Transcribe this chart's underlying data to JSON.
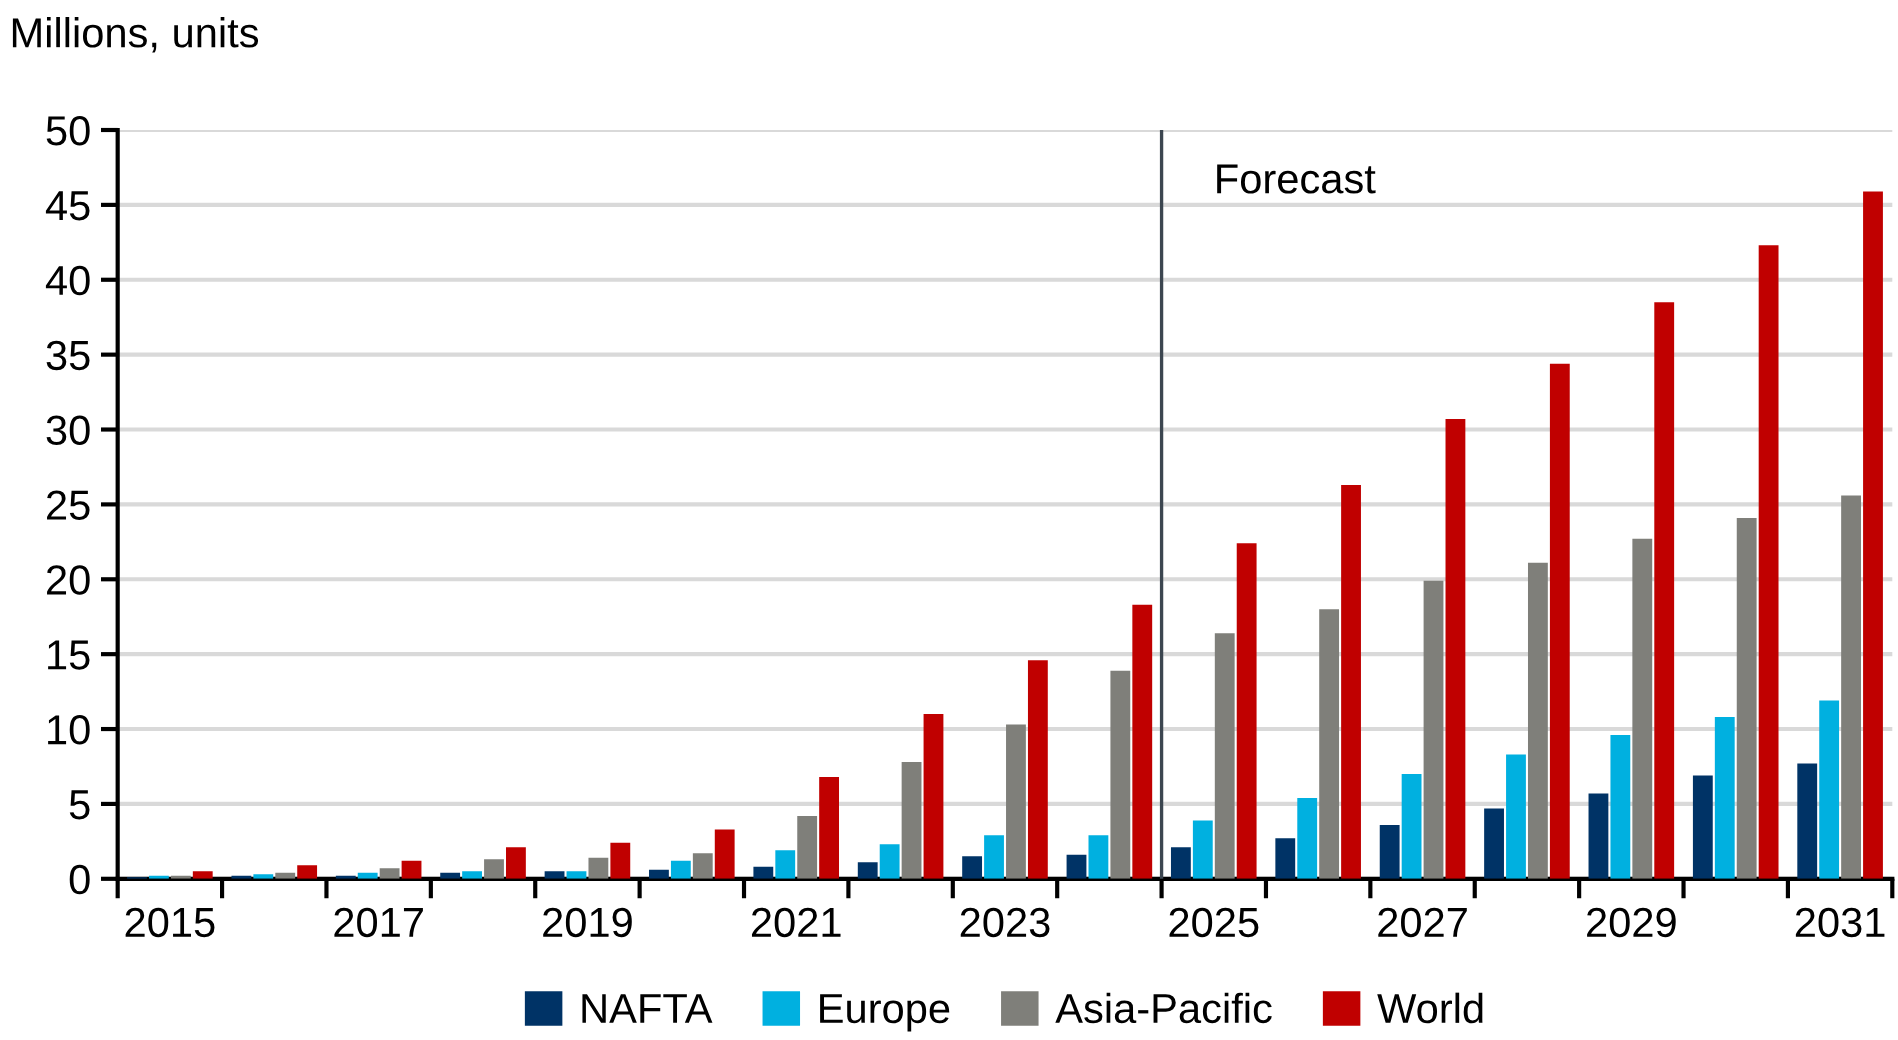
{
  "chart_data": {
    "type": "bar",
    "ylabel": "Millions, units",
    "x": [
      2015,
      2016,
      2017,
      2018,
      2019,
      2020,
      2021,
      2022,
      2023,
      2024,
      2025,
      2026,
      2027,
      2028,
      2029,
      2030,
      2031
    ],
    "series": [
      {
        "name": "NAFTA",
        "color": "#003366",
        "values": [
          0.1,
          0.2,
          0.2,
          0.4,
          0.5,
          0.6,
          0.8,
          1.1,
          1.5,
          1.6,
          2.1,
          2.7,
          3.6,
          4.7,
          5.7,
          6.9,
          7.7
        ]
      },
      {
        "name": "Europe",
        "color": "#00b0e0",
        "values": [
          0.2,
          0.3,
          0.4,
          0.5,
          0.5,
          1.2,
          1.9,
          2.3,
          2.9,
          2.9,
          3.9,
          5.4,
          7.0,
          8.3,
          9.6,
          10.8,
          11.9
        ]
      },
      {
        "name": "Asia-Pacific",
        "color": "#7f7f7a",
        "values": [
          0.2,
          0.4,
          0.7,
          1.3,
          1.4,
          1.7,
          4.2,
          7.8,
          10.3,
          13.9,
          16.4,
          18.0,
          19.9,
          21.1,
          22.7,
          24.1,
          25.6
        ]
      },
      {
        "name": "World",
        "color": "#c00000",
        "values": [
          0.5,
          0.9,
          1.2,
          2.1,
          2.4,
          3.3,
          6.8,
          11.0,
          14.6,
          18.3,
          22.4,
          26.3,
          30.7,
          34.4,
          38.5,
          42.3,
          45.9
        ]
      }
    ],
    "xlim": [
      2014.5,
      2031.5
    ],
    "xticks": [
      2015,
      2017,
      2019,
      2021,
      2023,
      2025,
      2027,
      2029,
      2031
    ],
    "ylim": [
      0,
      50
    ],
    "yticks": [
      0,
      5,
      10,
      15,
      20,
      25,
      30,
      35,
      40,
      45,
      50
    ],
    "ref_lines": [
      {
        "axis": "x",
        "value": 2024.5,
        "label": "Forecast",
        "color": "#3c4650"
      }
    ],
    "grid": "y",
    "legend": "bottom"
  }
}
